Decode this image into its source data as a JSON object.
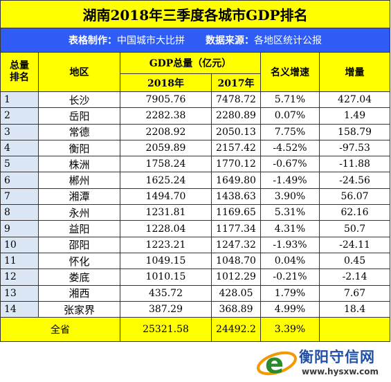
{
  "title": "湖南2018年三季度各城市GDP排名",
  "info": {
    "maker_label": "表格制作：",
    "maker_value": "中国城市大比拼",
    "source_label": "数据来源：",
    "source_value": "各地区统计公报"
  },
  "headers": {
    "rank": [
      "总量",
      "排名"
    ],
    "region": "地区",
    "gdp_group": "GDP总量（亿元）",
    "year_2018": "2018年",
    "year_2017": "2017年",
    "nominal_growth": "名义增速",
    "increase": "增量"
  },
  "rows": [
    {
      "rank": "1",
      "city": "长沙",
      "gdp_2018": "7905.76",
      "gdp_2017": "7478.72",
      "growth": "5.71%",
      "increase": "427.04"
    },
    {
      "rank": "2",
      "city": "岳阳",
      "gdp_2018": "2282.38",
      "gdp_2017": "2280.89",
      "growth": "0.07%",
      "increase": "1.49"
    },
    {
      "rank": "3",
      "city": "常德",
      "gdp_2018": "2208.92",
      "gdp_2017": "2050.13",
      "growth": "7.75%",
      "increase": "158.79"
    },
    {
      "rank": "4",
      "city": "衡阳",
      "gdp_2018": "2059.89",
      "gdp_2017": "2157.42",
      "growth": "-4.52%",
      "increase": "-97.53"
    },
    {
      "rank": "5",
      "city": "株洲",
      "gdp_2018": "1758.24",
      "gdp_2017": "1770.12",
      "growth": "-0.67%",
      "increase": "-11.88"
    },
    {
      "rank": "6",
      "city": "郴州",
      "gdp_2018": "1625.24",
      "gdp_2017": "1649.80",
      "growth": "-1.49%",
      "increase": "-24.56"
    },
    {
      "rank": "7",
      "city": "湘潭",
      "gdp_2018": "1494.70",
      "gdp_2017": "1438.63",
      "growth": "3.90%",
      "increase": "56.07"
    },
    {
      "rank": "8",
      "city": "永州",
      "gdp_2018": "1231.81",
      "gdp_2017": "1169.65",
      "growth": "5.31%",
      "increase": "62.16"
    },
    {
      "rank": "9",
      "city": "益阳",
      "gdp_2018": "1228.04",
      "gdp_2017": "1177.34",
      "growth": "4.31%",
      "increase": "50.7"
    },
    {
      "rank": "10",
      "city": "邵阳",
      "gdp_2018": "1223.21",
      "gdp_2017": "1247.32",
      "growth": "-1.93%",
      "increase": "-24.11"
    },
    {
      "rank": "11",
      "city": "怀化",
      "gdp_2018": "1049.15",
      "gdp_2017": "1048.70",
      "growth": "0.04%",
      "increase": "0.45"
    },
    {
      "rank": "12",
      "city": "娄底",
      "gdp_2018": "1010.15",
      "gdp_2017": "1012.29",
      "growth": "-0.21%",
      "increase": "-2.14"
    },
    {
      "rank": "13",
      "city": "湘西",
      "gdp_2018": "435.72",
      "gdp_2017": "428.05",
      "growth": "1.79%",
      "increase": "7.67"
    },
    {
      "rank": "14",
      "city": "张家界",
      "gdp_2018": "387.29",
      "gdp_2017": "368.89",
      "growth": "4.99%",
      "increase": "18.4"
    }
  ],
  "total": {
    "label": "全省",
    "gdp_2018": "25321.58",
    "gdp_2017": "24492.2",
    "growth": "3.39%",
    "increase": ""
  },
  "watermark": {
    "name": "衡阳守信网",
    "url": "www.hysxw.com"
  }
}
